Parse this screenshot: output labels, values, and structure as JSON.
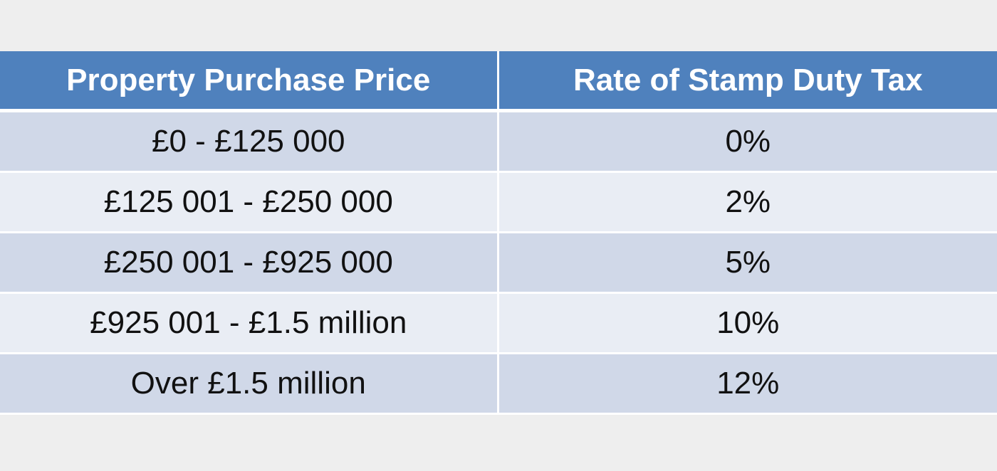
{
  "table": {
    "headers": [
      "Property Purchase Price",
      "Rate of Stamp Duty Tax"
    ],
    "rows": [
      [
        "£0 - £125 000",
        "0%"
      ],
      [
        "£125 001 - £250 000",
        "2%"
      ],
      [
        "£250 001 - £925 000",
        "5%"
      ],
      [
        "£925 001 - £1.5 million",
        "10%"
      ],
      [
        "Over £1.5 million",
        "12%"
      ]
    ],
    "colors": {
      "header_bg": "#4f81bd",
      "header_text": "#ffffff",
      "row_odd_bg": "#d0d8e8",
      "row_even_bg": "#e9edf4",
      "page_bg": "#eeeeee"
    }
  }
}
